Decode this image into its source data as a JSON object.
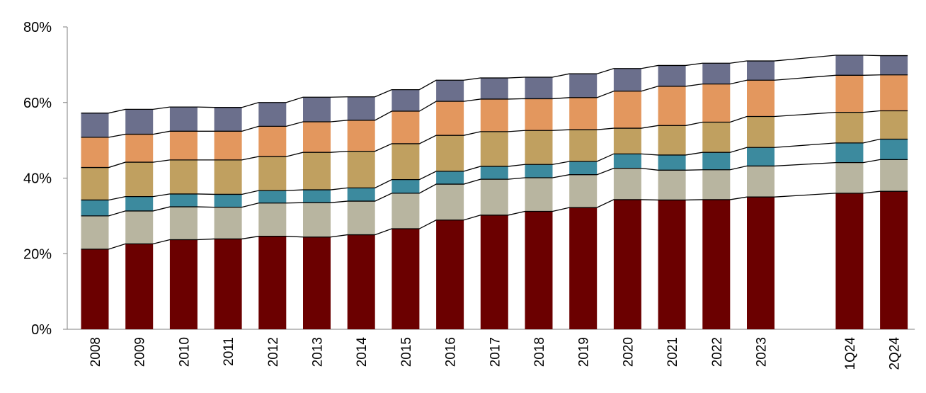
{
  "chart_data": {
    "type": "bar",
    "stacked": true,
    "title": "",
    "xlabel": "",
    "ylabel": "",
    "ylim": [
      0,
      0.8
    ],
    "y_ticks": [
      0,
      0.2,
      0.4,
      0.6,
      0.8
    ],
    "y_tick_labels": [
      "0%",
      "20%",
      "40%",
      "60%",
      "80%"
    ],
    "categories": [
      "2008",
      "2009",
      "2010",
      "2011",
      "2012",
      "2013",
      "2014",
      "2015",
      "2016",
      "2017",
      "2018",
      "2019",
      "2020",
      "2021",
      "2022",
      "2023",
      "1Q24",
      "2Q24"
    ],
    "gap_after_category": "2023",
    "connector_lines": true,
    "grid": false,
    "legend": "none",
    "series": [
      {
        "color": "#6b0000",
        "values": [
          0.212,
          0.226,
          0.237,
          0.239,
          0.246,
          0.244,
          0.25,
          0.266,
          0.289,
          0.302,
          0.312,
          0.322,
          0.343,
          0.342,
          0.343,
          0.35,
          0.36,
          0.365
        ]
      },
      {
        "color": "#b8b5a0",
        "values": [
          0.088,
          0.087,
          0.087,
          0.084,
          0.088,
          0.091,
          0.089,
          0.094,
          0.095,
          0.095,
          0.089,
          0.087,
          0.083,
          0.079,
          0.079,
          0.082,
          0.081,
          0.084
        ]
      },
      {
        "color": "#3c8a9e",
        "values": [
          0.042,
          0.038,
          0.034,
          0.034,
          0.033,
          0.034,
          0.035,
          0.036,
          0.034,
          0.034,
          0.035,
          0.035,
          0.038,
          0.04,
          0.046,
          0.049,
          0.052,
          0.054
        ]
      },
      {
        "color": "#c0a060",
        "values": [
          0.086,
          0.091,
          0.09,
          0.091,
          0.09,
          0.099,
          0.097,
          0.095,
          0.095,
          0.092,
          0.09,
          0.084,
          0.068,
          0.078,
          0.08,
          0.082,
          0.081,
          0.075
        ]
      },
      {
        "color": "#e3975e",
        "values": [
          0.08,
          0.074,
          0.076,
          0.076,
          0.08,
          0.081,
          0.082,
          0.086,
          0.09,
          0.086,
          0.084,
          0.085,
          0.098,
          0.104,
          0.101,
          0.096,
          0.098,
          0.095
        ]
      },
      {
        "color": "#6b6f8c",
        "values": [
          0.064,
          0.066,
          0.064,
          0.063,
          0.063,
          0.065,
          0.062,
          0.057,
          0.056,
          0.056,
          0.057,
          0.063,
          0.06,
          0.055,
          0.055,
          0.051,
          0.053,
          0.051
        ]
      }
    ]
  }
}
